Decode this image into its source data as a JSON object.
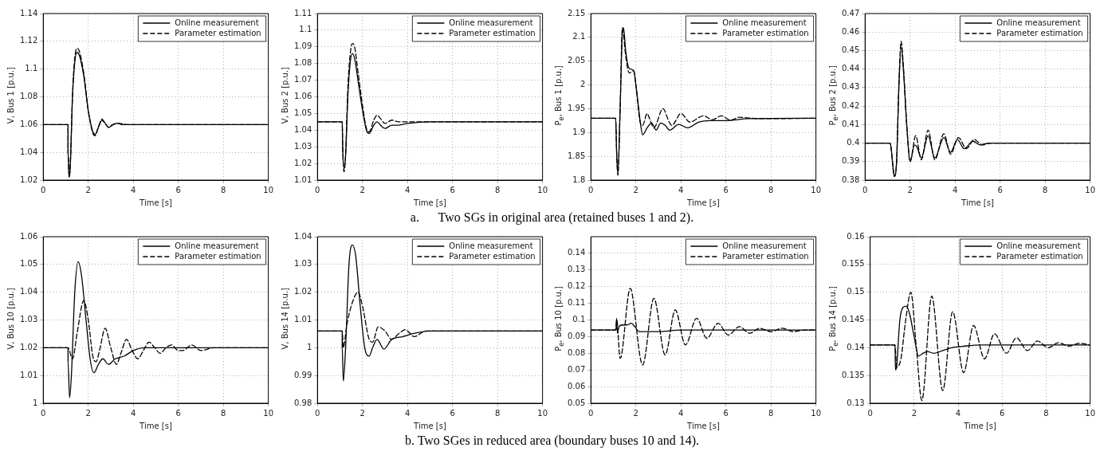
{
  "chart_data": [
    {
      "type": "line",
      "xlabel": "Time [s]",
      "ylabel": "V, Bus 1 [p.u.]",
      "xlim": [
        0,
        10
      ],
      "xticks": [
        0,
        2,
        4,
        6,
        8,
        10
      ],
      "ylim": [
        1.02,
        1.14
      ],
      "yticks": [
        1.02,
        1.04,
        1.06,
        1.08,
        1.1,
        1.12,
        1.14
      ],
      "grid": true,
      "legend": "top right",
      "marker": "none",
      "annotations": [
        "a.      Two SGs in original area (retained buses 1 and 2)."
      ],
      "series": [
        {
          "name": "Online measurement",
          "color": "#000000",
          "line_style": "solid",
          "x": [
            0,
            1.1,
            1.1,
            1.15,
            1.2,
            1.3,
            1.4,
            1.5,
            1.6,
            1.8,
            2.0,
            2.2,
            2.3,
            2.45,
            2.6,
            2.75,
            2.9,
            3.1,
            3.3,
            3.5,
            10
          ],
          "values": [
            1.06,
            1.06,
            1.04,
            1.022,
            1.03,
            1.08,
            1.105,
            1.112,
            1.11,
            1.095,
            1.07,
            1.055,
            1.053,
            1.058,
            1.063,
            1.061,
            1.058,
            1.06,
            1.061,
            1.06,
            1.06
          ]
        },
        {
          "name": "Parameter estimation",
          "color": "#000000",
          "line_style": "dashed",
          "x": [
            0,
            1.1,
            1.1,
            1.15,
            1.2,
            1.3,
            1.4,
            1.5,
            1.6,
            1.8,
            2.0,
            2.2,
            2.3,
            2.45,
            2.6,
            2.75,
            2.9,
            3.1,
            3.3,
            3.8,
            10
          ],
          "values": [
            1.06,
            1.06,
            1.04,
            1.022,
            1.03,
            1.082,
            1.108,
            1.115,
            1.113,
            1.097,
            1.07,
            1.054,
            1.052,
            1.058,
            1.064,
            1.061,
            1.058,
            1.06,
            1.061,
            1.06,
            1.06
          ]
        }
      ]
    },
    {
      "type": "line",
      "xlabel": "Time [s]",
      "ylabel": "V, Bus 2 [p.u.]",
      "xlim": [
        0,
        10
      ],
      "xticks": [
        0,
        2,
        4,
        6,
        8,
        10
      ],
      "ylim": [
        1.01,
        1.11
      ],
      "yticks": [
        1.01,
        1.02,
        1.03,
        1.04,
        1.05,
        1.06,
        1.07,
        1.08,
        1.09,
        1.1,
        1.11
      ],
      "grid": true,
      "legend": "top right",
      "marker": "none",
      "series": [
        {
          "name": "Online measurement",
          "color": "#000000",
          "line_style": "solid",
          "x": [
            0,
            1.1,
            1.12,
            1.18,
            1.25,
            1.35,
            1.45,
            1.55,
            1.65,
            1.8,
            2.0,
            2.2,
            2.3,
            2.5,
            2.65,
            2.8,
            3.0,
            3.3,
            3.6,
            4,
            5,
            10
          ],
          "values": [
            1.045,
            1.045,
            1.03,
            1.017,
            1.025,
            1.06,
            1.08,
            1.086,
            1.083,
            1.07,
            1.052,
            1.039,
            1.038,
            1.043,
            1.045,
            1.043,
            1.041,
            1.043,
            1.043,
            1.044,
            1.045,
            1.045
          ]
        },
        {
          "name": "Parameter estimation",
          "color": "#000000",
          "line_style": "dashed",
          "x": [
            0,
            1.1,
            1.12,
            1.18,
            1.25,
            1.35,
            1.45,
            1.55,
            1.65,
            1.8,
            2.0,
            2.2,
            2.3,
            2.5,
            2.65,
            2.8,
            3.0,
            3.3,
            3.6,
            4,
            10
          ],
          "values": [
            1.045,
            1.045,
            1.03,
            1.015,
            1.025,
            1.065,
            1.085,
            1.092,
            1.09,
            1.075,
            1.055,
            1.04,
            1.039,
            1.046,
            1.049,
            1.047,
            1.044,
            1.046,
            1.045,
            1.045,
            1.045
          ]
        }
      ]
    },
    {
      "type": "line",
      "xlabel": "Time [s]",
      "ylabel": "P$_{e}$, Bus 1 [p.u.]",
      "xlim": [
        0,
        10
      ],
      "xticks": [
        0,
        2,
        4,
        6,
        8,
        10
      ],
      "ylim": [
        1.8,
        2.15
      ],
      "yticks": [
        1.8,
        1.85,
        1.9,
        1.95,
        2,
        2.05,
        2.1,
        2.15
      ],
      "grid": true,
      "legend": "top right",
      "marker": "none",
      "series": [
        {
          "name": "Online measurement",
          "color": "#000000",
          "line_style": "solid",
          "x": [
            0,
            1.1,
            1.1,
            1.15,
            1.2,
            1.3,
            1.4,
            1.45,
            1.55,
            1.7,
            1.9,
            2.0,
            2.2,
            2.3,
            2.5,
            2.7,
            2.9,
            3.1,
            3.3,
            3.5,
            3.9,
            4.3,
            4.8,
            5.3,
            6,
            7,
            10
          ],
          "values": [
            1.93,
            1.93,
            1.93,
            1.85,
            1.815,
            1.95,
            2.11,
            2.12,
            2.07,
            2.035,
            2.03,
            2.0,
            1.92,
            1.895,
            1.91,
            1.92,
            1.905,
            1.92,
            1.915,
            1.905,
            1.917,
            1.91,
            1.922,
            1.925,
            1.925,
            1.929,
            1.93
          ]
        },
        {
          "name": "Parameter estimation",
          "color": "#000000",
          "line_style": "dashed",
          "x": [
            0,
            1.1,
            1.1,
            1.15,
            1.2,
            1.3,
            1.4,
            1.55,
            1.7,
            1.9,
            2.0,
            2.2,
            2.3,
            2.5,
            2.6,
            2.8,
            3.2,
            3.5,
            3.6,
            4.0,
            4.4,
            5.0,
            5.4,
            5.8,
            6.2,
            6.6,
            7.5,
            10
          ],
          "values": [
            1.93,
            1.93,
            1.93,
            1.85,
            1.81,
            1.95,
            2.12,
            2.06,
            2.025,
            2.03,
            2.0,
            1.92,
            1.915,
            1.94,
            1.93,
            1.91,
            1.95,
            1.92,
            1.915,
            1.94,
            1.922,
            1.935,
            1.927,
            1.935,
            1.926,
            1.932,
            1.929,
            1.93
          ]
        }
      ]
    },
    {
      "type": "line",
      "xlabel": "Time [s]",
      "ylabel": "P$_{e}$, Bus 2 [p.u.]",
      "xlim": [
        0,
        10
      ],
      "xticks": [
        0,
        2,
        4,
        6,
        8,
        10
      ],
      "ylim": [
        0.38,
        0.47
      ],
      "yticks": [
        0.38,
        0.39,
        0.4,
        0.41,
        0.42,
        0.43,
        0.44,
        0.45,
        0.46,
        0.47
      ],
      "grid": true,
      "legend": "top right",
      "marker": "none",
      "series": [
        {
          "name": "Online measurement",
          "color": "#000000",
          "line_style": "solid",
          "x": [
            0,
            1.1,
            1.15,
            1.25,
            1.3,
            1.4,
            1.5,
            1.6,
            1.7,
            1.85,
            2.0,
            2.2,
            2.3,
            2.5,
            2.8,
            3.1,
            3.5,
            3.8,
            4.1,
            4.4,
            4.8,
            5.1,
            5.5,
            10
          ],
          "values": [
            0.4,
            0.4,
            0.398,
            0.386,
            0.382,
            0.39,
            0.43,
            0.452,
            0.44,
            0.41,
            0.39,
            0.399,
            0.398,
            0.392,
            0.404,
            0.392,
            0.403,
            0.395,
            0.402,
            0.397,
            0.401,
            0.399,
            0.4,
            0.4
          ]
        },
        {
          "name": "Parameter estimation",
          "color": "#000000",
          "line_style": "dashed",
          "x": [
            0,
            1.1,
            1.15,
            1.3,
            1.4,
            1.5,
            1.6,
            1.7,
            1.85,
            2.0,
            2.25,
            2.5,
            2.8,
            3.1,
            3.5,
            3.8,
            4.15,
            4.5,
            4.85,
            5.2,
            5.6,
            10
          ],
          "values": [
            0.4,
            0.4,
            0.398,
            0.382,
            0.39,
            0.43,
            0.455,
            0.442,
            0.41,
            0.39,
            0.404,
            0.391,
            0.407,
            0.391,
            0.405,
            0.394,
            0.403,
            0.397,
            0.402,
            0.399,
            0.4,
            0.4
          ]
        }
      ]
    },
    {
      "type": "line",
      "xlabel": "Time [s]",
      "ylabel": "V, Bus 10 [p.u.]",
      "xlim": [
        0,
        10
      ],
      "xticks": [
        0,
        2,
        4,
        6,
        8,
        10
      ],
      "ylim": [
        1,
        1.06
      ],
      "yticks": [
        1,
        1.01,
        1.02,
        1.03,
        1.04,
        1.05,
        1.06
      ],
      "grid": true,
      "legend": "top right",
      "marker": "none",
      "annotations": [
        "b. Two SGes in reduced area (boundary buses 10 and 14)."
      ],
      "series": [
        {
          "name": "Online measurement",
          "color": "#000000",
          "line_style": "solid",
          "x": [
            0,
            1.1,
            1.1,
            1.17,
            1.25,
            1.4,
            1.55,
            1.7,
            1.9,
            2.1,
            2.25,
            2.45,
            2.65,
            2.9,
            3.2,
            3.6,
            4.0,
            4.5,
            10
          ],
          "values": [
            1.02,
            1.02,
            1.015,
            1.002,
            1.01,
            1.04,
            1.051,
            1.046,
            1.03,
            1.015,
            1.011,
            1.014,
            1.016,
            1.014,
            1.016,
            1.017,
            1.019,
            1.02,
            1.02
          ]
        },
        {
          "name": "Parameter estimation",
          "color": "#000000",
          "line_style": "dashed",
          "x": [
            0,
            1.1,
            1.3,
            1.5,
            1.8,
            2.0,
            2.2,
            2.35,
            2.5,
            2.75,
            3.0,
            3.25,
            3.45,
            3.7,
            3.95,
            4.2,
            4.45,
            4.7,
            4.95,
            5.2,
            5.45,
            5.7,
            6.0,
            6.2,
            6.6,
            7.0,
            7.6,
            10
          ],
          "values": [
            1.02,
            1.02,
            1.016,
            1.025,
            1.037,
            1.03,
            1.017,
            1.015,
            1.019,
            1.027,
            1.02,
            1.014,
            1.018,
            1.023,
            1.019,
            1.016,
            1.019,
            1.022,
            1.02,
            1.018,
            1.02,
            1.021,
            1.019,
            1.019,
            1.021,
            1.019,
            1.02,
            1.02
          ]
        }
      ]
    },
    {
      "type": "line",
      "xlabel": "Time [s]",
      "ylabel": "V, Bus 14 [p.u.]",
      "xlim": [
        0,
        10
      ],
      "xticks": [
        0,
        2,
        4,
        6,
        8,
        10
      ],
      "ylim": [
        0.98,
        1.04
      ],
      "yticks": [
        0.98,
        0.99,
        1,
        1.01,
        1.02,
        1.03,
        1.04
      ],
      "grid": true,
      "legend": "top right",
      "marker": "none",
      "series": [
        {
          "name": "Online measurement",
          "color": "#000000",
          "line_style": "solid",
          "x": [
            0,
            1.1,
            1.1,
            1.15,
            1.25,
            1.4,
            1.55,
            1.7,
            1.9,
            2.1,
            2.3,
            2.45,
            2.65,
            2.95,
            3.3,
            3.8,
            4.2,
            5,
            10
          ],
          "values": [
            1.006,
            1.006,
            1.0,
            0.988,
            1.0,
            1.03,
            1.037,
            1.033,
            1.015,
            1.0,
            0.997,
            1.0,
            1.003,
            0.9995,
            1.003,
            1.004,
            1.005,
            1.006,
            1.006
          ]
        },
        {
          "name": "Parameter estimation",
          "color": "#000000",
          "line_style": "dashed",
          "x": [
            0,
            1.1,
            1.15,
            1.3,
            1.5,
            1.8,
            2.0,
            2.3,
            2.45,
            2.7,
            3.0,
            3.3,
            3.6,
            3.9,
            4.3,
            4.8,
            10
          ],
          "values": [
            1.006,
            1.006,
            1.0,
            1.008,
            1.015,
            1.02,
            1.015,
            1.003,
            1.002,
            1.0075,
            1.006,
            1.003,
            1.005,
            1.0065,
            1.004,
            1.006,
            1.006
          ]
        }
      ]
    },
    {
      "type": "line",
      "xlabel": "Time [s]",
      "ylabel": "P$_{e}$, Bus 10 [p.u.]",
      "xlim": [
        0,
        10
      ],
      "xticks": [
        0,
        2,
        4,
        6,
        8,
        10
      ],
      "ylim": [
        0.05,
        0.15
      ],
      "yticks": [
        0.05,
        0.06,
        0.07,
        0.08,
        0.09,
        0.1,
        0.11,
        0.12,
        0.13,
        0.14
      ],
      "grid": true,
      "legend": "top right",
      "marker": "none",
      "series": [
        {
          "name": "Online measurement",
          "color": "#000000",
          "line_style": "solid",
          "x": [
            0,
            1.12,
            1.14,
            1.18,
            1.25,
            1.4,
            1.6,
            1.8,
            1.95,
            2.15,
            2.4,
            3,
            4,
            10
          ],
          "values": [
            0.094,
            0.094,
            0.101,
            0.092,
            0.096,
            0.097,
            0.097,
            0.098,
            0.096,
            0.093,
            0.093,
            0.093,
            0.094,
            0.094
          ]
        },
        {
          "name": "Parameter estimation",
          "color": "#000000",
          "line_style": "dashed",
          "x": [
            0,
            1.1,
            1.15,
            1.3,
            1.35,
            1.75,
            1.8,
            2.3,
            2.8,
            3.3,
            3.75,
            4.2,
            4.7,
            5.15,
            5.65,
            6.1,
            6.6,
            7.05,
            7.5,
            8.0,
            8.5,
            9.0,
            9.5,
            10
          ],
          "values": [
            0.094,
            0.094,
            0.1,
            0.077,
            0.078,
            0.119,
            0.118,
            0.073,
            0.113,
            0.079,
            0.106,
            0.085,
            0.101,
            0.089,
            0.098,
            0.091,
            0.096,
            0.092,
            0.095,
            0.093,
            0.095,
            0.093,
            0.094,
            0.094
          ]
        }
      ]
    },
    {
      "type": "line",
      "xlabel": "Time [s]",
      "ylabel": "P$_{e}$, Bus 14 [p.u.]",
      "xlim": [
        0,
        10
      ],
      "xticks": [
        0,
        2,
        4,
        6,
        8,
        10
      ],
      "ylim": [
        0.13,
        0.16
      ],
      "yticks": [
        0.13,
        0.135,
        0.14,
        0.145,
        0.15,
        0.155,
        0.16
      ],
      "grid": true,
      "legend": "top right",
      "marker": "none",
      "series": [
        {
          "name": "Online measurement",
          "color": "#000000",
          "line_style": "solid",
          "x": [
            0,
            1.13,
            1.15,
            1.2,
            1.35,
            1.5,
            1.65,
            1.8,
            2.0,
            2.2,
            2.4,
            2.6,
            2.9,
            3.3,
            3.7,
            4.3,
            5,
            10
          ],
          "values": [
            0.1405,
            0.1405,
            0.136,
            0.1365,
            0.145,
            0.1473,
            0.1475,
            0.146,
            0.142,
            0.1385,
            0.139,
            0.1393,
            0.139,
            0.1395,
            0.14,
            0.1403,
            0.1405,
            0.1405
          ]
        },
        {
          "name": "Parameter estimation",
          "color": "#000000",
          "line_style": "dashed",
          "x": [
            0,
            1.13,
            1.2,
            1.4,
            1.6,
            1.85,
            2.1,
            2.35,
            2.8,
            3.3,
            3.75,
            4.25,
            4.7,
            5.2,
            5.65,
            6.2,
            6.65,
            7.15,
            7.6,
            8.1,
            8.55,
            9.05,
            9.5,
            10
          ],
          "values": [
            0.1405,
            0.1405,
            0.1365,
            0.138,
            0.1445,
            0.15,
            0.14,
            0.1305,
            0.1493,
            0.1323,
            0.1465,
            0.1355,
            0.144,
            0.138,
            0.1425,
            0.139,
            0.1418,
            0.1395,
            0.1412,
            0.14,
            0.1409,
            0.1403,
            0.1408,
            0.1405
          ]
        }
      ]
    }
  ]
}
